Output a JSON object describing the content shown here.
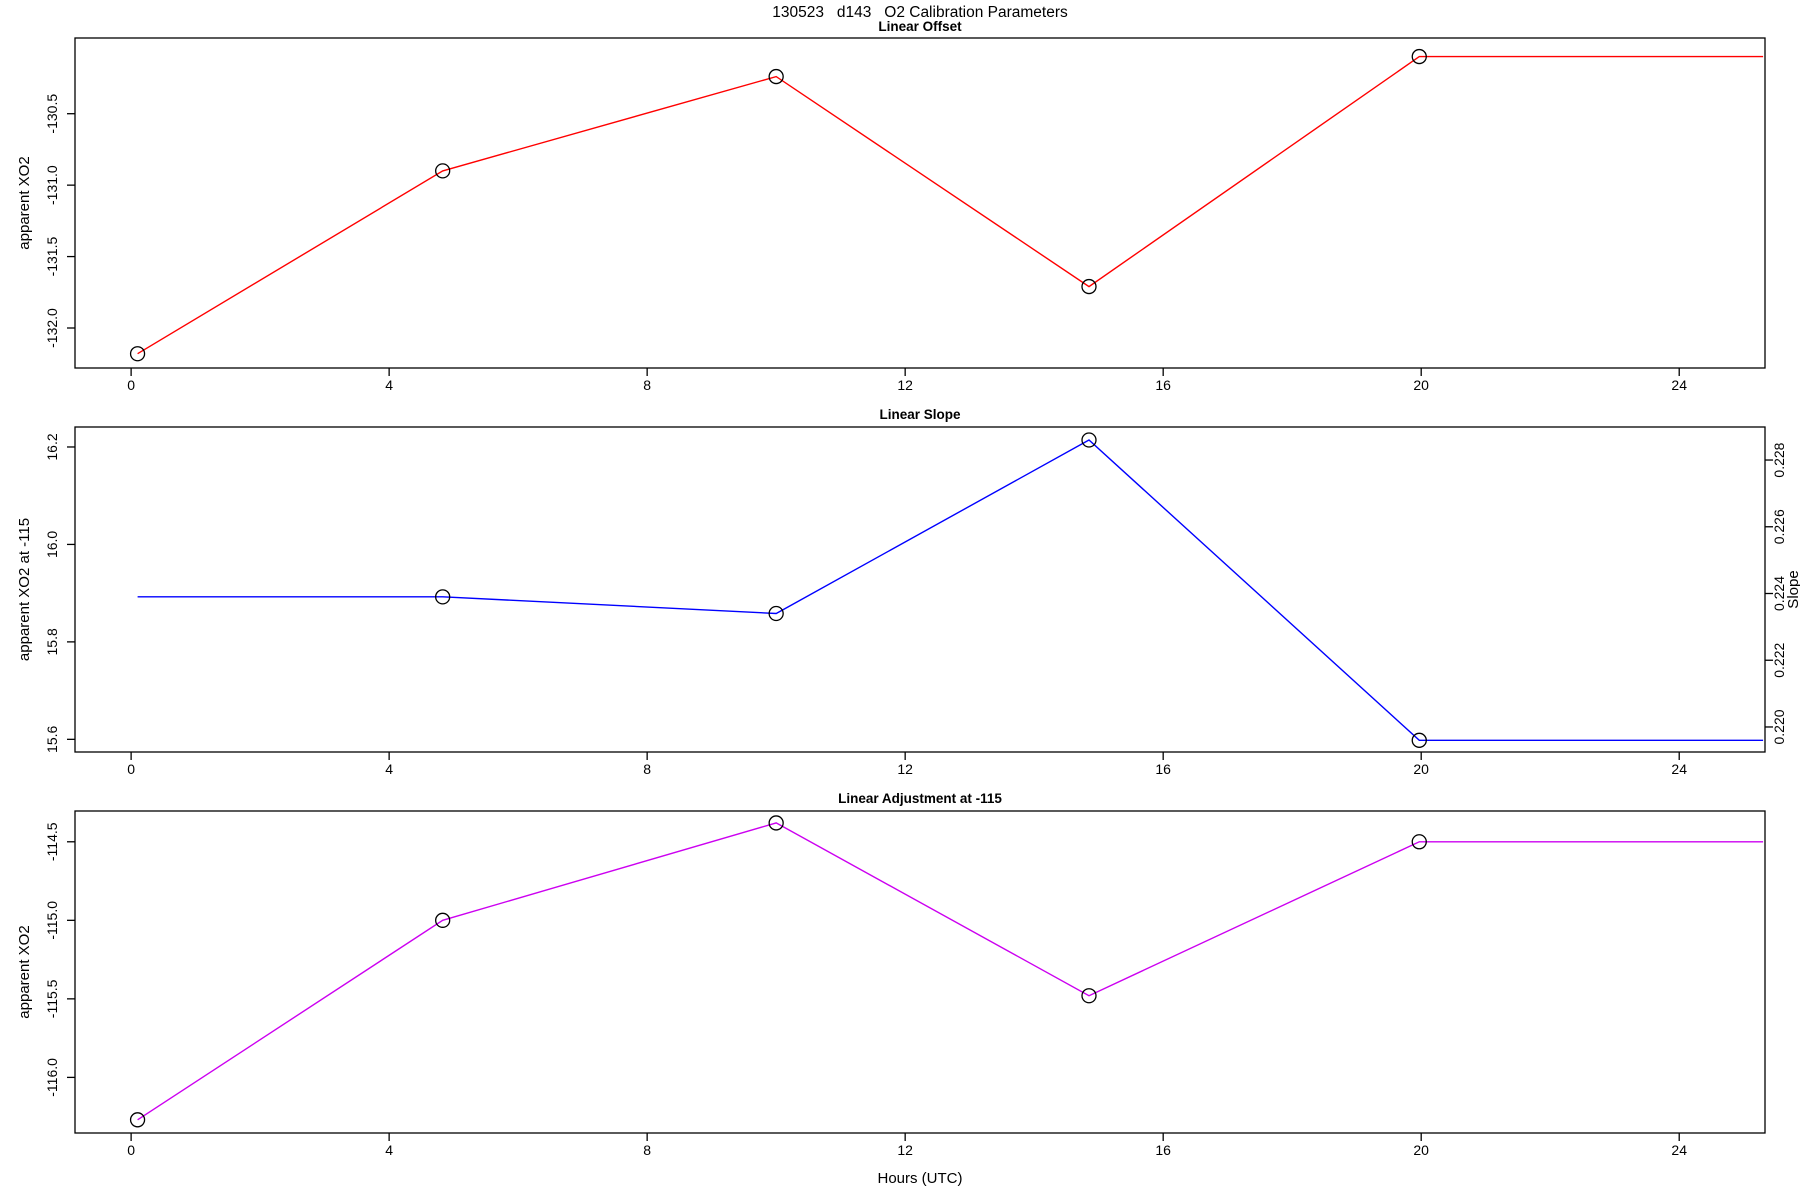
{
  "page": {
    "main_title": "130523   d143   O2 Calibration Parameters",
    "xlabel": "Hours (UTC)",
    "background": "#ffffff",
    "axis_color": "#000000",
    "marker_color": "#000000"
  },
  "chart_data": [
    {
      "type": "line",
      "title": "Linear Offset",
      "line_color": "#ff0000",
      "marker": "open-circle",
      "x": [
        0.1,
        4.83,
        10.0,
        14.85,
        19.97
      ],
      "y": [
        -132.18,
        -130.9,
        -130.24,
        -131.71,
        -130.1
      ],
      "flat_extension_x": 25.3,
      "skip_first_marker": false,
      "xlim": [
        -0.87,
        25.33
      ],
      "ylim": [
        -132.28,
        -129.97
      ],
      "xtick_values": [
        0,
        4,
        8,
        12,
        16,
        20,
        24
      ],
      "xtick_labels": [
        "0",
        "4",
        "8",
        "12",
        "16",
        "20",
        "24"
      ],
      "left_axis": {
        "label": "apparent XO2",
        "ylim": [
          -132.28,
          -129.97
        ],
        "tick_values": [
          -132.0,
          -131.5,
          -131.0,
          -130.5
        ],
        "tick_labels": [
          "-132.0",
          "-131.5",
          "-131.0",
          "-130.5"
        ]
      },
      "right_axis": null,
      "xlabel": ""
    },
    {
      "type": "line",
      "title": "Linear Slope",
      "line_color": "#0000ff",
      "marker": "open-circle",
      "x": [
        0.1,
        4.83,
        10.0,
        14.85,
        19.97
      ],
      "y": [
        0.2239,
        0.2239,
        0.2234,
        0.2286,
        0.2196
      ],
      "flat_extension_x": 25.3,
      "skip_first_marker": true,
      "xlim": [
        -0.87,
        25.33
      ],
      "ylim": [
        0.21925,
        0.22899
      ],
      "xtick_values": [
        0,
        4,
        8,
        12,
        16,
        20,
        24
      ],
      "xtick_labels": [
        "0",
        "4",
        "8",
        "12",
        "16",
        "20",
        "24"
      ],
      "left_axis": {
        "label": "apparent XO2 at -115",
        "ylim": [
          15.574,
          16.241
        ],
        "tick_values": [
          15.6,
          15.8,
          16.0,
          16.2
        ],
        "tick_labels": [
          "15.6",
          "15.8",
          "16.0",
          "16.2"
        ]
      },
      "right_axis": {
        "label": "Slope",
        "ylim": [
          0.21925,
          0.22899
        ],
        "tick_values": [
          0.22,
          0.222,
          0.224,
          0.226,
          0.228
        ],
        "tick_labels": [
          "0.220",
          "0.222",
          "0.224",
          "0.226",
          "0.228"
        ]
      },
      "xlabel": ""
    },
    {
      "type": "line",
      "title": "Linear Adjustment at -115",
      "line_color": "#cc00f0",
      "marker": "open-circle",
      "x": [
        0.1,
        4.83,
        10.0,
        14.85,
        19.97
      ],
      "y": [
        -116.27,
        -115.0,
        -114.38,
        -115.48,
        -114.5
      ],
      "flat_extension_x": 25.3,
      "skip_first_marker": false,
      "xlim": [
        -0.87,
        25.33
      ],
      "ylim": [
        -116.354,
        -114.304
      ],
      "xtick_values": [
        0,
        4,
        8,
        12,
        16,
        20,
        24
      ],
      "xtick_labels": [
        "0",
        "4",
        "8",
        "12",
        "16",
        "20",
        "24"
      ],
      "left_axis": {
        "label": "apparent XO2",
        "ylim": [
          -116.354,
          -114.304
        ],
        "tick_values": [
          -116.0,
          -115.5,
          -115.0,
          -114.5
        ],
        "tick_labels": [
          "-116.0",
          "-115.5",
          "-115.0",
          "-114.5"
        ]
      },
      "right_axis": null,
      "xlabel": "Hours (UTC)"
    }
  ]
}
